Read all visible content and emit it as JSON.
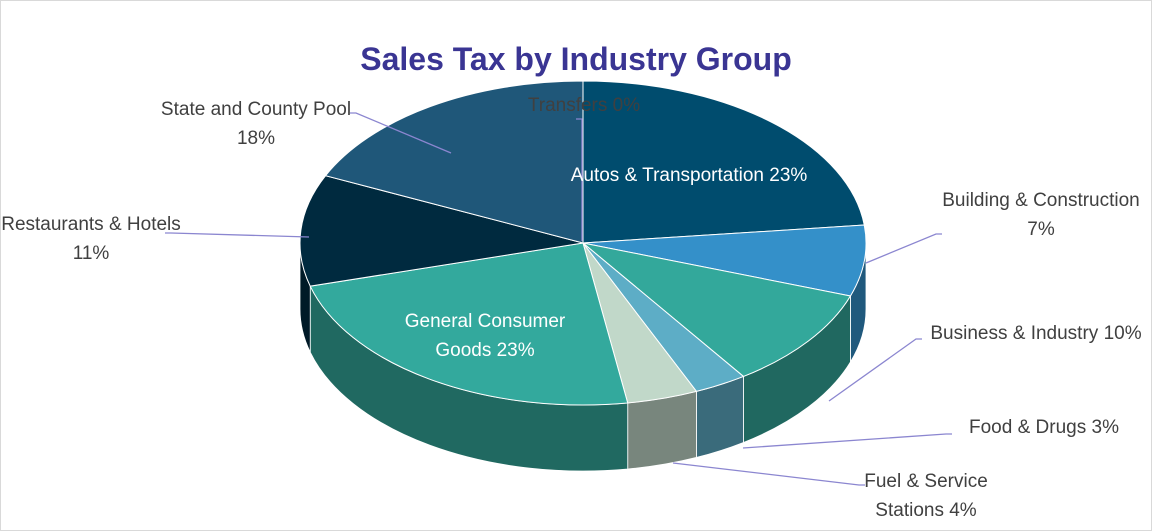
{
  "chart_data": {
    "type": "pie",
    "title": "Sales Tax by Industry Group",
    "categories": [
      "Autos & Transportation",
      "Building & Construction",
      "Business & Industry",
      "Food & Drugs",
      "Fuel & Service Stations",
      "General Consumer Goods",
      "Restaurants & Hotels",
      "State and County Pool",
      "Transfers"
    ],
    "values": [
      23,
      7,
      10,
      3,
      4,
      23,
      11,
      18,
      0
    ],
    "value_labels": [
      "23%",
      "7%",
      "10%",
      "3%",
      "4%",
      "23%",
      "11%",
      "18%",
      "0%"
    ],
    "colors": [
      "#004c6e",
      "#3490c9",
      "#33a89b",
      "#5dadc6",
      "#c1d8c9",
      "#33a99d",
      "#002a3f",
      "#1f5779",
      "#7f7f7f"
    ]
  }
}
